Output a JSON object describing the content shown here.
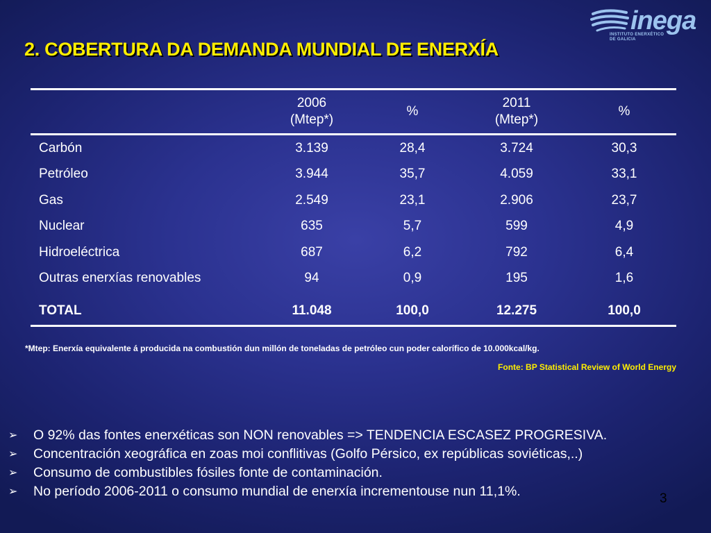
{
  "logo": {
    "word": "inega",
    "subtitle": "INSTITUTO ENERXÉTICO DE GALICIA"
  },
  "title": "2. COBERTURA DA DEMANDA MUNDIAL DE  ENERXÍA",
  "table": {
    "headers": [
      {
        "line1": "",
        "line2": ""
      },
      {
        "line1": "2006",
        "line2": "(Mtep*)"
      },
      {
        "line1": "%",
        "line2": ""
      },
      {
        "line1": "2011",
        "line2": "(Mtep*)"
      },
      {
        "line1": "%",
        "line2": ""
      }
    ],
    "rows": [
      [
        "Carbón",
        "3.139",
        "28,4",
        "3.724",
        "30,3"
      ],
      [
        "Petróleo",
        "3.944",
        "35,7",
        "4.059",
        "33,1"
      ],
      [
        "Gas",
        "2.549",
        "23,1",
        "2.906",
        "23,7"
      ],
      [
        "Nuclear",
        "635",
        "5,7",
        "599",
        "4,9"
      ],
      [
        "Hidroeléctrica",
        "687",
        "6,2",
        "792",
        "6,4"
      ],
      [
        "Outras enerxías renovables",
        "94",
        "0,9",
        "195",
        "1,6"
      ]
    ],
    "total": [
      "TOTAL",
      "11.048",
      "100,0",
      "12.275",
      "100,0"
    ]
  },
  "note": "*Mtep: Enerxía equivalente á producida na combustión dun millón de toneladas de petróleo cun poder calorífico de 10.000kcal/kg.",
  "source": "Fonte: BP Statistical Review of World Energy",
  "bullets": [
    "O 92% das fontes enerxéticas son NON renovables => TENDENCIA ESCASEZ PROGRESIVA.",
    "Concentración xeográfica en zoas moi conflitivas (Golfo Pérsico, ex repúblicas soviéticas,..)",
    "Consumo de combustibles fósiles fonte de contaminación.",
    "No período 2006-2011 o consumo mundial de enerxía incrementouse nun 11,1%."
  ],
  "bullet_icon": "arrow-bullet-icon",
  "page_number": "3",
  "colors": {
    "title": "#ffee00",
    "source": "#ffee00",
    "logo": "#9cc3ee",
    "text": "#ffffff"
  }
}
